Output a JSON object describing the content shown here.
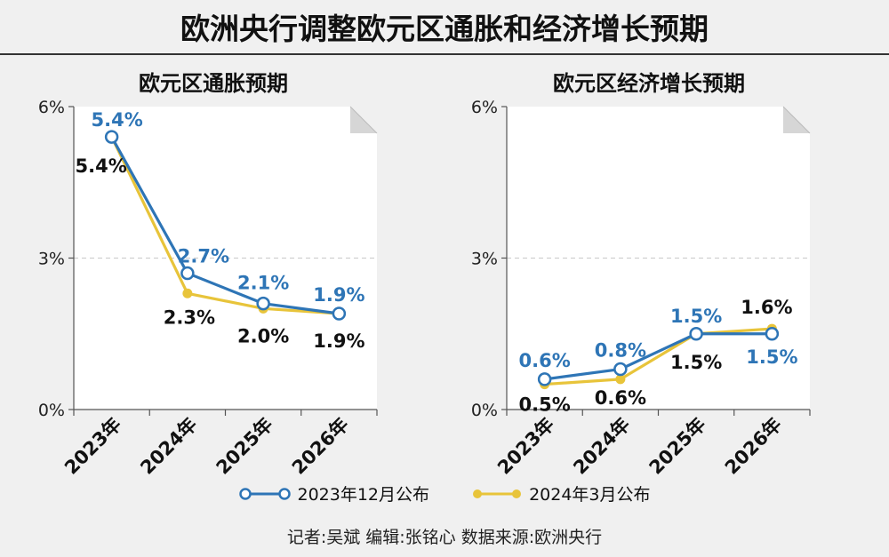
{
  "header": {
    "title": "欧洲央行调整欧元区通胀和经济增长预期"
  },
  "legend": {
    "dec2023": "2023年12月公布",
    "mar2024": "2024年3月公布"
  },
  "credits": "记者:吴斌   编辑:张铭心   数据来源:欧洲央行",
  "colors": {
    "blue": "#2e75b6",
    "yellow": "#e8c43a",
    "label_blue": "#2e75b6",
    "label_black": "#111111"
  },
  "chart_data": [
    {
      "type": "line",
      "title": "欧元区通胀预期",
      "categories": [
        "2023年",
        "2024年",
        "2025年",
        "2026年"
      ],
      "yticks": [
        "0%",
        "3%",
        "6%"
      ],
      "ylim": [
        0,
        6
      ],
      "series": [
        {
          "name": "2023年12月公布",
          "values": [
            5.4,
            2.7,
            2.1,
            1.9
          ],
          "labels": [
            "5.4%",
            "2.7%",
            "2.1%",
            "1.9%"
          ]
        },
        {
          "name": "2024年3月公布",
          "values": [
            5.4,
            2.3,
            2.0,
            1.9
          ],
          "labels": [
            "5.4%",
            "2.3%",
            "2.0%",
            "1.9%"
          ]
        }
      ]
    },
    {
      "type": "line",
      "title": "欧元区经济增长预期",
      "categories": [
        "2023年",
        "2024年",
        "2025年",
        "2026年"
      ],
      "yticks": [
        "0%",
        "3%",
        "6%"
      ],
      "ylim": [
        0,
        6
      ],
      "series": [
        {
          "name": "2023年12月公布",
          "values": [
            0.6,
            0.8,
            1.5,
            1.5
          ],
          "labels": [
            "0.6%",
            "0.8%",
            "1.5%",
            "1.5%"
          ]
        },
        {
          "name": "2024年3月公布",
          "values": [
            0.5,
            0.6,
            1.5,
            1.6
          ],
          "labels": [
            "0.5%",
            "0.6%",
            "1.5%",
            "1.6%"
          ]
        }
      ]
    }
  ]
}
